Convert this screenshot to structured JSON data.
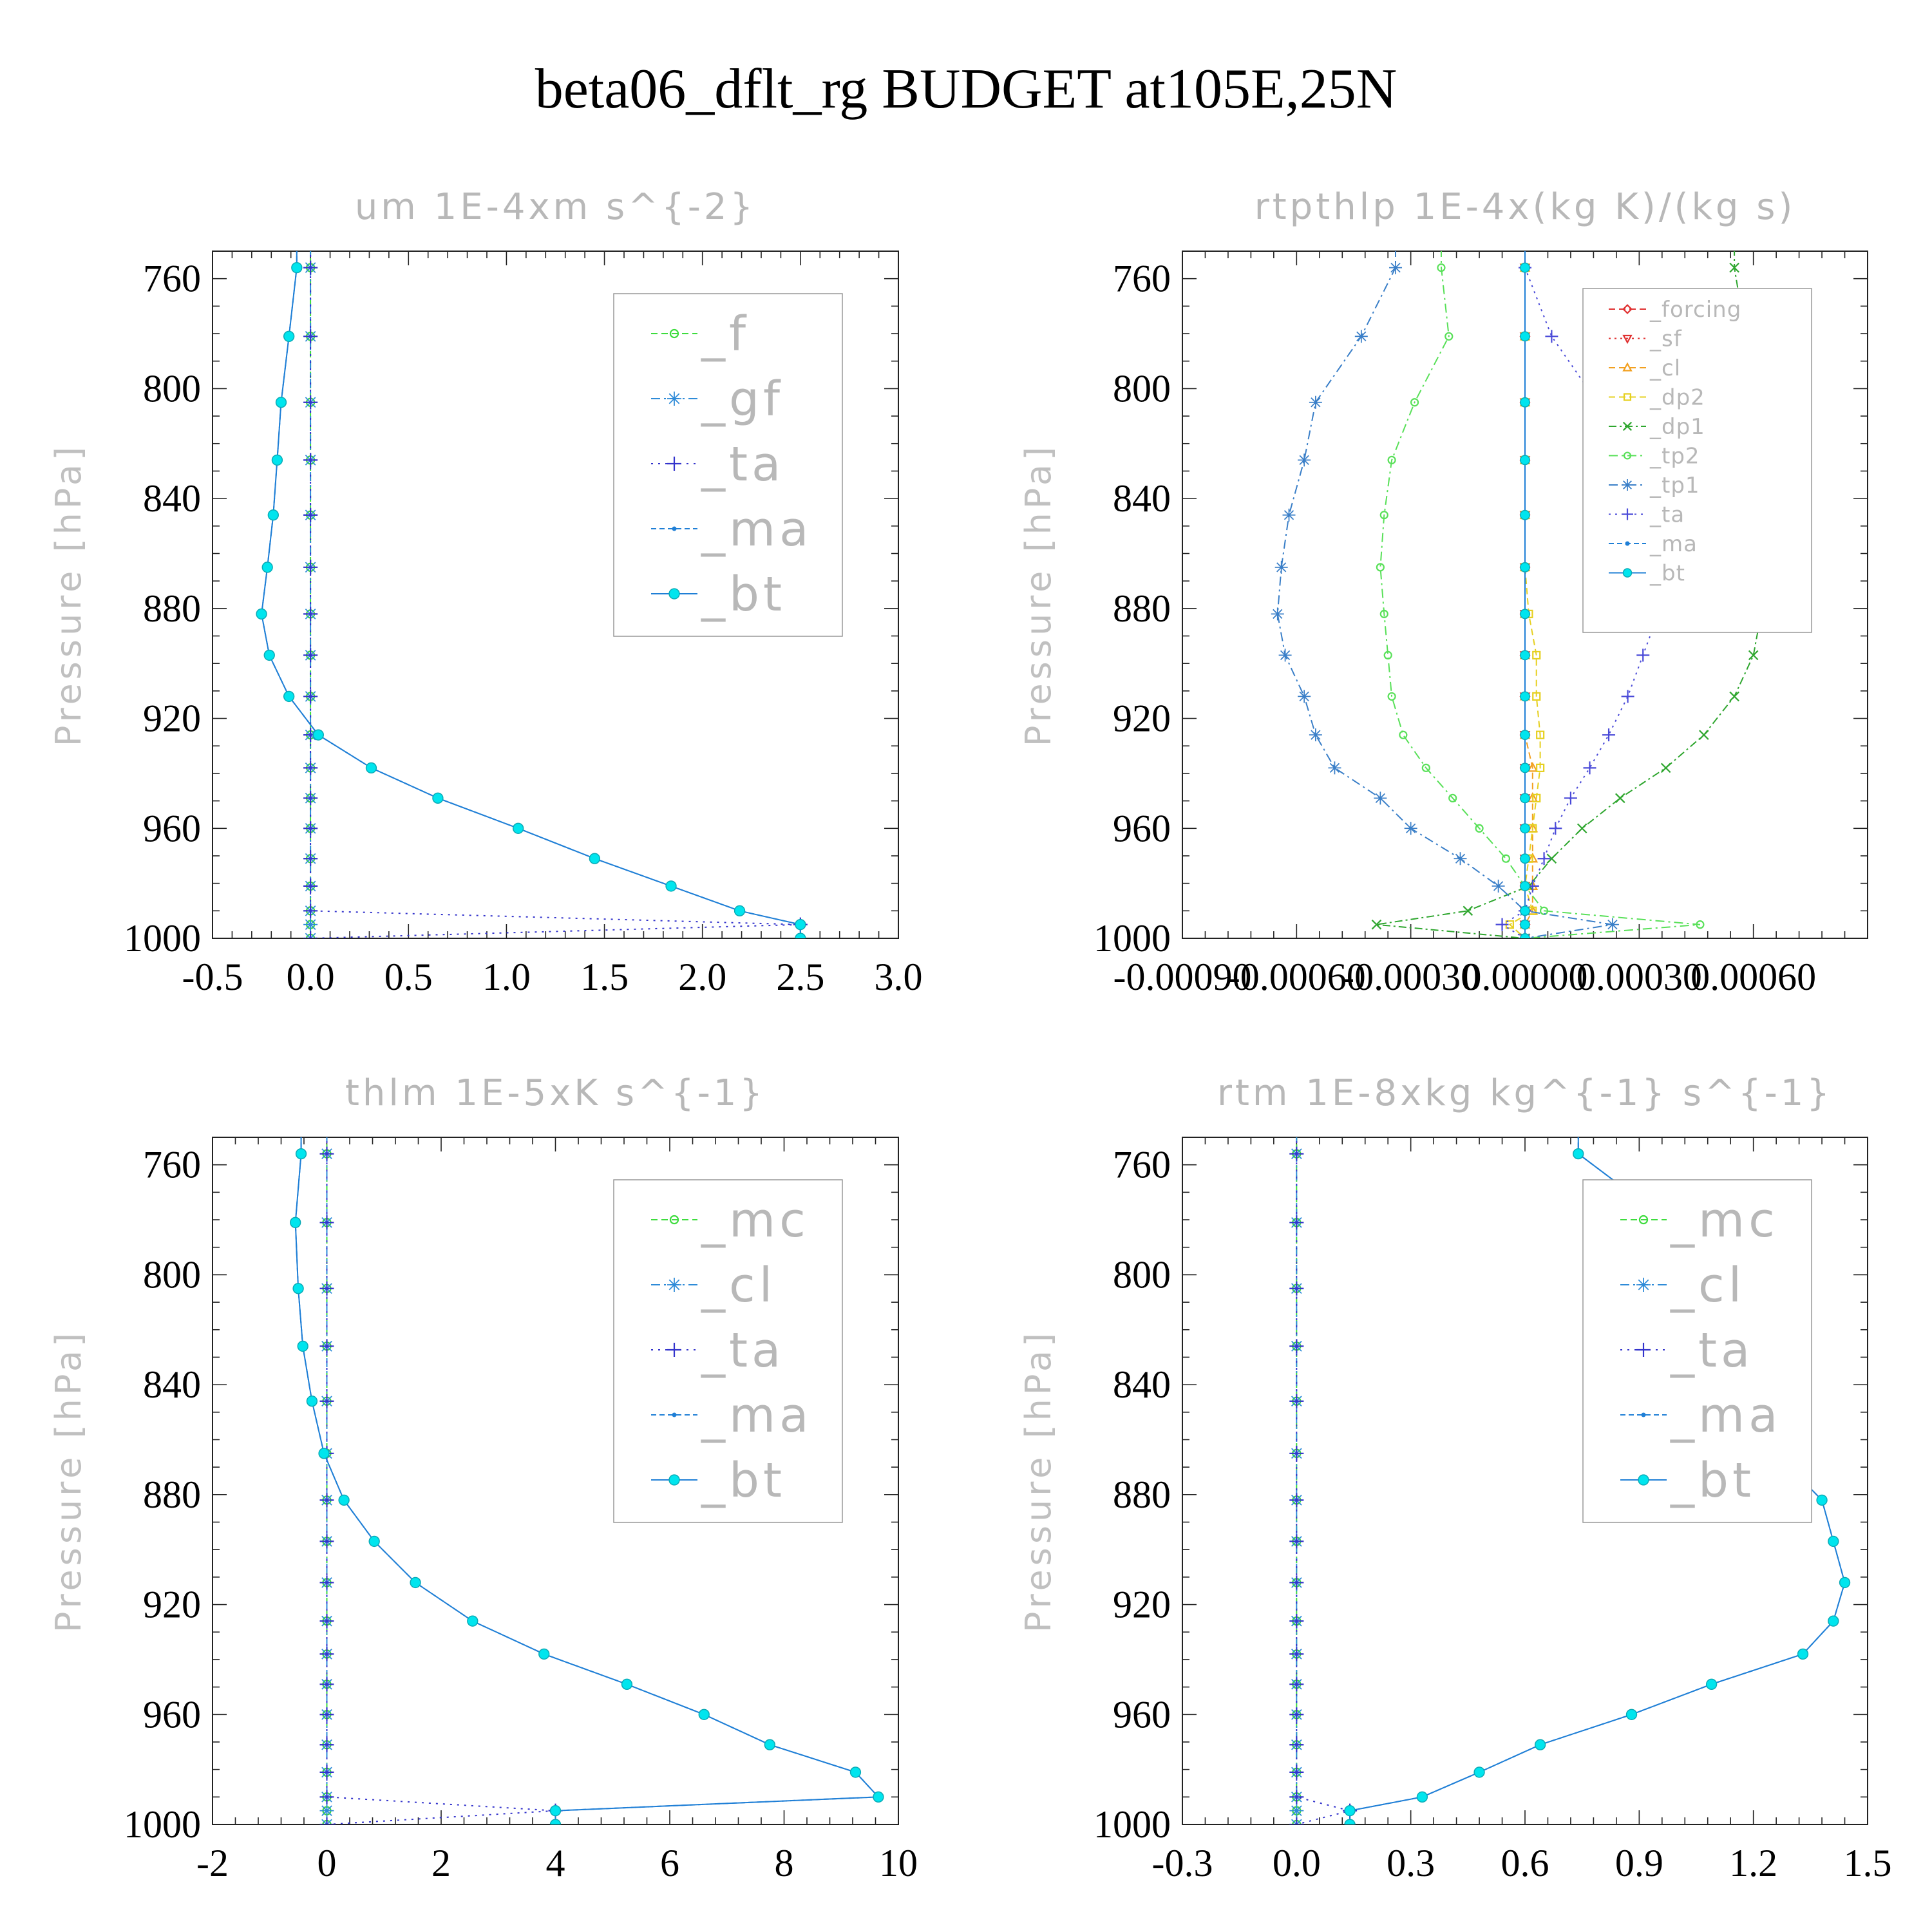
{
  "title": "beta06_dflt_rg  BUDGET at105E,25N",
  "chart_data": [
    {
      "type": "line",
      "title": "um   1E-4xm s^{-2}",
      "ylabel": "Pressure [hPa]",
      "xlim": [
        -0.5,
        3.0
      ],
      "ylim": [
        1000,
        750
      ],
      "xticks": [
        "-0.5",
        "0.0",
        "0.5",
        "1.0",
        "1.5",
        "2.0",
        "2.5",
        "3.0"
      ],
      "yticks": [
        "760",
        "800",
        "840",
        "880",
        "920",
        "960",
        "1000"
      ],
      "pressure": [
        756,
        781,
        805,
        826,
        846,
        865,
        882,
        897,
        912,
        926,
        938,
        949,
        960,
        971,
        981,
        990,
        995,
        1000
      ],
      "series": [
        {
          "name": "_f",
          "color": "#3ddc3d",
          "marker": "circle",
          "dash": "10,6",
          "values": [
            0,
            0,
            0,
            0,
            0,
            0,
            0,
            0,
            0,
            0,
            0,
            0,
            0,
            0,
            0,
            0,
            0,
            0
          ]
        },
        {
          "name": "_gf",
          "color": "#2e8bd8",
          "marker": "star",
          "dash": "14,6,3,6",
          "values": [
            0,
            0,
            0,
            0,
            0,
            0,
            0,
            0,
            0,
            0,
            0,
            0,
            0,
            0,
            0,
            0,
            0,
            0
          ]
        },
        {
          "name": "_ta",
          "color": "#3333cc",
          "marker": "plus",
          "dash": "3,8",
          "values": [
            0,
            0,
            0,
            0,
            0,
            0,
            0,
            0,
            0,
            0,
            0,
            0,
            0,
            0,
            0,
            0,
            2.5,
            0
          ]
        },
        {
          "name": "_ma",
          "color": "#1f7fd6",
          "marker": "dot",
          "dash": "8,5",
          "values": [
            -0.07,
            -0.11,
            -0.15,
            -0.17,
            -0.19,
            -0.22,
            -0.25,
            -0.21,
            -0.11,
            0.04,
            0.31,
            0.65,
            1.06,
            1.45,
            1.84,
            2.19,
            2.5,
            2.5
          ]
        },
        {
          "name": "_bt",
          "color": "#00e5ee",
          "marker": "filled",
          "dash": "",
          "values": [
            -0.07,
            -0.11,
            -0.15,
            -0.17,
            -0.19,
            -0.22,
            -0.25,
            -0.21,
            -0.11,
            0.04,
            0.31,
            0.65,
            1.06,
            1.45,
            1.84,
            2.19,
            2.5,
            2.5
          ]
        }
      ]
    },
    {
      "type": "line",
      "title": "rtpthlp   1E-4x(kg K)/(kg s)",
      "ylabel": "Pressure [hPa]",
      "xlim": [
        -0.0009,
        0.0009
      ],
      "ylim": [
        1000,
        750
      ],
      "xticks": [
        "-0.00090",
        "-0.00060",
        "-0.00030",
        "0.00000",
        "0.00030",
        "0.00060"
      ],
      "yticks": [
        "760",
        "800",
        "840",
        "880",
        "920",
        "960",
        "1000"
      ],
      "pressure": [
        756,
        781,
        805,
        826,
        846,
        865,
        882,
        897,
        912,
        926,
        938,
        949,
        960,
        971,
        981,
        990,
        995,
        1000
      ],
      "series": [
        {
          "name": "_forcing",
          "color": "#e03030",
          "marker": "diamond",
          "dash": "10,6",
          "values": [
            0,
            0,
            0,
            0,
            0,
            0,
            0,
            0,
            0,
            0,
            0,
            0,
            0,
            0,
            0,
            0,
            0,
            0
          ]
        },
        {
          "name": "_sf",
          "color": "#e03030",
          "marker": "tri-down",
          "dash": "3,6",
          "values": [
            0,
            0,
            0,
            0,
            0,
            0,
            0,
            0,
            0,
            0,
            0,
            0,
            0,
            0,
            0,
            0,
            0,
            0
          ]
        },
        {
          "name": "_cl",
          "color": "#f2a020",
          "marker": "tri-up",
          "dash": "10,6",
          "values": [
            0,
            0,
            0,
            0,
            0,
            0,
            0,
            0,
            0,
            0,
            2e-05,
            2e-05,
            2e-05,
            2e-05,
            2e-05,
            2e-05,
            0,
            0
          ]
        },
        {
          "name": "_dp2",
          "color": "#e6d020",
          "marker": "square",
          "dash": "10,6",
          "values": [
            0,
            0,
            0,
            0,
            0,
            0,
            1e-05,
            3e-05,
            3e-05,
            4e-05,
            4e-05,
            3e-05,
            2e-05,
            1e-05,
            0,
            2e-05,
            -4e-05,
            0
          ]
        },
        {
          "name": "_dp1",
          "color": "#2ea62e",
          "marker": "x",
          "dash": "12,5,3,5",
          "values": [
            0.00055,
            0.00058,
            0.00061,
            0.00063,
            0.00062,
            0.00062,
            0.00062,
            0.0006,
            0.00055,
            0.00047,
            0.00037,
            0.00025,
            0.00015,
            7e-05,
            1e-05,
            -0.00015,
            -0.00039,
            0
          ]
        },
        {
          "name": "_tp2",
          "color": "#58e058",
          "marker": "circle",
          "dash": "14,6,3,6",
          "values": [
            -0.00022,
            -0.0002,
            -0.00029,
            -0.00035,
            -0.00037,
            -0.00038,
            -0.00037,
            -0.00036,
            -0.00035,
            -0.00032,
            -0.00026,
            -0.00019,
            -0.00012,
            -5e-05,
            0,
            5e-05,
            0.00046,
            0
          ]
        },
        {
          "name": "_tp1",
          "color": "#3a7fc8",
          "marker": "star",
          "dash": "14,6,3,6",
          "values": [
            -0.00034,
            -0.00043,
            -0.00055,
            -0.00058,
            -0.00062,
            -0.00064,
            -0.00065,
            -0.00063,
            -0.00058,
            -0.00055,
            -0.0005,
            -0.00038,
            -0.0003,
            -0.00017,
            -7e-05,
            0,
            0.00023,
            0
          ]
        },
        {
          "name": "_ta",
          "color": "#4a4ad8",
          "marker": "plus",
          "dash": "3,7",
          "values": [
            0,
            7e-05,
            0.00019,
            0.00028,
            0.00034,
            0.00037,
            0.00035,
            0.00031,
            0.00027,
            0.00022,
            0.00017,
            0.00012,
            8e-05,
            5e-05,
            2e-05,
            0.0,
            -6e-05,
            0
          ]
        },
        {
          "name": "_ma",
          "color": "#1f7fd6",
          "marker": "dot",
          "dash": "8,5",
          "values": [
            0,
            0,
            0,
            0,
            0,
            0,
            0,
            0,
            0,
            0,
            0,
            0,
            0,
            0,
            0,
            0,
            0,
            0
          ]
        },
        {
          "name": "_bt",
          "color": "#00e5ee",
          "marker": "filled",
          "dash": "",
          "values": [
            0,
            0,
            0,
            0,
            0,
            0,
            0,
            0,
            0,
            0,
            0,
            0,
            0,
            0,
            0,
            0,
            0,
            0
          ]
        }
      ]
    },
    {
      "type": "line",
      "title": "thlm   1E-5xK s^{-1}",
      "ylabel": "Pressure [hPa]",
      "xlim": [
        -2,
        10
      ],
      "ylim": [
        1000,
        750
      ],
      "xticks": [
        "-2",
        "0",
        "2",
        "4",
        "6",
        "8",
        "10"
      ],
      "yticks": [
        "760",
        "800",
        "840",
        "880",
        "920",
        "960",
        "1000"
      ],
      "pressure": [
        756,
        781,
        805,
        826,
        846,
        865,
        882,
        897,
        912,
        926,
        938,
        949,
        960,
        971,
        981,
        990,
        995,
        1000
      ],
      "series": [
        {
          "name": "_mc",
          "color": "#3ddc3d",
          "marker": "circle",
          "dash": "10,6",
          "values": [
            0,
            0,
            0,
            0,
            0,
            0,
            0,
            0,
            0,
            0,
            0,
            0,
            0,
            0,
            0,
            0,
            0,
            0
          ]
        },
        {
          "name": "_cl",
          "color": "#2e8bd8",
          "marker": "star",
          "dash": "14,6,3,6",
          "values": [
            0,
            0,
            0,
            0,
            0,
            0,
            0,
            0,
            0,
            0,
            0,
            0,
            0,
            0,
            0,
            0,
            0,
            0
          ]
        },
        {
          "name": "_ta",
          "color": "#3333cc",
          "marker": "plus",
          "dash": "3,8",
          "values": [
            0,
            0,
            0,
            0,
            0,
            0,
            0,
            0,
            0,
            0,
            0,
            0,
            0,
            0,
            0,
            0,
            4.0,
            0
          ]
        },
        {
          "name": "_ma",
          "color": "#1f7fd6",
          "marker": "dot",
          "dash": "8,5",
          "values": [
            -0.45,
            -0.55,
            -0.5,
            -0.42,
            -0.26,
            -0.05,
            0.3,
            0.83,
            1.55,
            2.55,
            3.8,
            5.25,
            6.6,
            7.75,
            9.25,
            9.65,
            4.0,
            4.0
          ]
        },
        {
          "name": "_bt",
          "color": "#00e5ee",
          "marker": "filled",
          "dash": "",
          "values": [
            -0.45,
            -0.55,
            -0.5,
            -0.42,
            -0.26,
            -0.05,
            0.3,
            0.83,
            1.55,
            2.55,
            3.8,
            5.25,
            6.6,
            7.75,
            9.25,
            9.65,
            4.0,
            4.0
          ]
        }
      ]
    },
    {
      "type": "line",
      "title": "rtm   1E-8xkg kg^{-1} s^{-1}",
      "ylabel": "Pressure [hPa]",
      "xlim": [
        -0.3,
        1.5
      ],
      "ylim": [
        1000,
        750
      ],
      "xticks": [
        "-0.3",
        "0.0",
        "0.3",
        "0.6",
        "0.9",
        "1.2",
        "1.5"
      ],
      "yticks": [
        "760",
        "800",
        "840",
        "880",
        "920",
        "960",
        "1000"
      ],
      "pressure": [
        756,
        781,
        805,
        826,
        846,
        865,
        882,
        897,
        912,
        926,
        938,
        949,
        960,
        971,
        981,
        990,
        995,
        1000
      ],
      "series": [
        {
          "name": "_mc",
          "color": "#3ddc3d",
          "marker": "circle",
          "dash": "10,6",
          "values": [
            0,
            0,
            0,
            0,
            0,
            0,
            0,
            0,
            0,
            0,
            0,
            0,
            0,
            0,
            0,
            0,
            0,
            0
          ]
        },
        {
          "name": "_cl",
          "color": "#2e8bd8",
          "marker": "star",
          "dash": "14,6,3,6",
          "values": [
            0,
            0,
            0,
            0,
            0,
            0,
            0,
            0,
            0,
            0,
            0,
            0,
            0,
            0,
            0,
            0,
            0,
            0
          ]
        },
        {
          "name": "_ta",
          "color": "#3333cc",
          "marker": "plus",
          "dash": "3,8",
          "values": [
            0,
            0,
            0,
            0,
            0,
            0,
            0,
            0,
            0,
            0,
            0,
            0,
            0,
            0,
            0,
            0,
            0.14,
            0
          ]
        },
        {
          "name": "_ma",
          "color": "#1f7fd6",
          "marker": "dot",
          "dash": "8,5",
          "values": [
            0.74,
            0.98,
            1.13,
            1.15,
            1.13,
            1.26,
            1.38,
            1.41,
            1.44,
            1.41,
            1.33,
            1.09,
            0.88,
            0.64,
            0.48,
            0.33,
            0.14,
            0.14
          ]
        },
        {
          "name": "_bt",
          "color": "#00e5ee",
          "marker": "filled",
          "dash": "",
          "values": [
            0.74,
            0.98,
            1.13,
            1.15,
            1.13,
            1.26,
            1.38,
            1.41,
            1.44,
            1.41,
            1.33,
            1.09,
            0.88,
            0.64,
            0.48,
            0.33,
            0.14,
            0.14
          ]
        }
      ]
    }
  ]
}
